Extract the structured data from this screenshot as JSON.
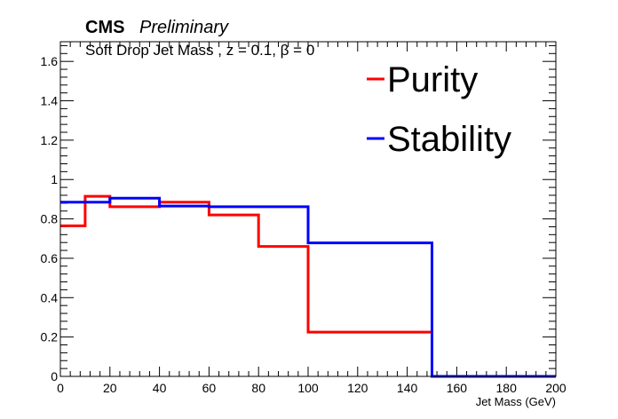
{
  "chart_data": {
    "type": "line",
    "step": true,
    "header": {
      "experiment": "CMS",
      "status": "Preliminary"
    },
    "subtitle": "Soft Drop Jet Mass , z = 0.1,  β = 0",
    "xlabel": "Jet Mass (GeV)",
    "ylabel": "",
    "xlim": [
      0,
      200
    ],
    "ylim": [
      0,
      1.7
    ],
    "x_ticks": [
      0,
      20,
      40,
      60,
      80,
      100,
      120,
      140,
      160,
      180,
      200
    ],
    "y_ticks": [
      0,
      0.2,
      0.4,
      0.6,
      0.8,
      1,
      1.2,
      1.4,
      1.6
    ],
    "x_tick_labels": [
      "0",
      "20",
      "40",
      "60",
      "80",
      "100",
      "120",
      "140",
      "160",
      "180",
      "200"
    ],
    "y_tick_labels": [
      "0",
      "0.2",
      "0.4",
      "0.6",
      "0.8",
      "1",
      "1.2",
      "1.4",
      "1.6"
    ],
    "bin_edges": [
      0,
      10,
      20,
      40,
      60,
      80,
      100,
      150,
      200
    ],
    "legend_position": "top-right",
    "grid": false,
    "series": [
      {
        "name": "Purity",
        "color": "#ff0000",
        "values": [
          0.765,
          0.915,
          0.862,
          0.885,
          0.82,
          0.66,
          0.225,
          0.0
        ]
      },
      {
        "name": "Stability",
        "color": "#0000ff",
        "values": [
          0.885,
          0.885,
          0.905,
          0.865,
          0.862,
          0.862,
          0.678,
          0.0
        ]
      }
    ]
  }
}
